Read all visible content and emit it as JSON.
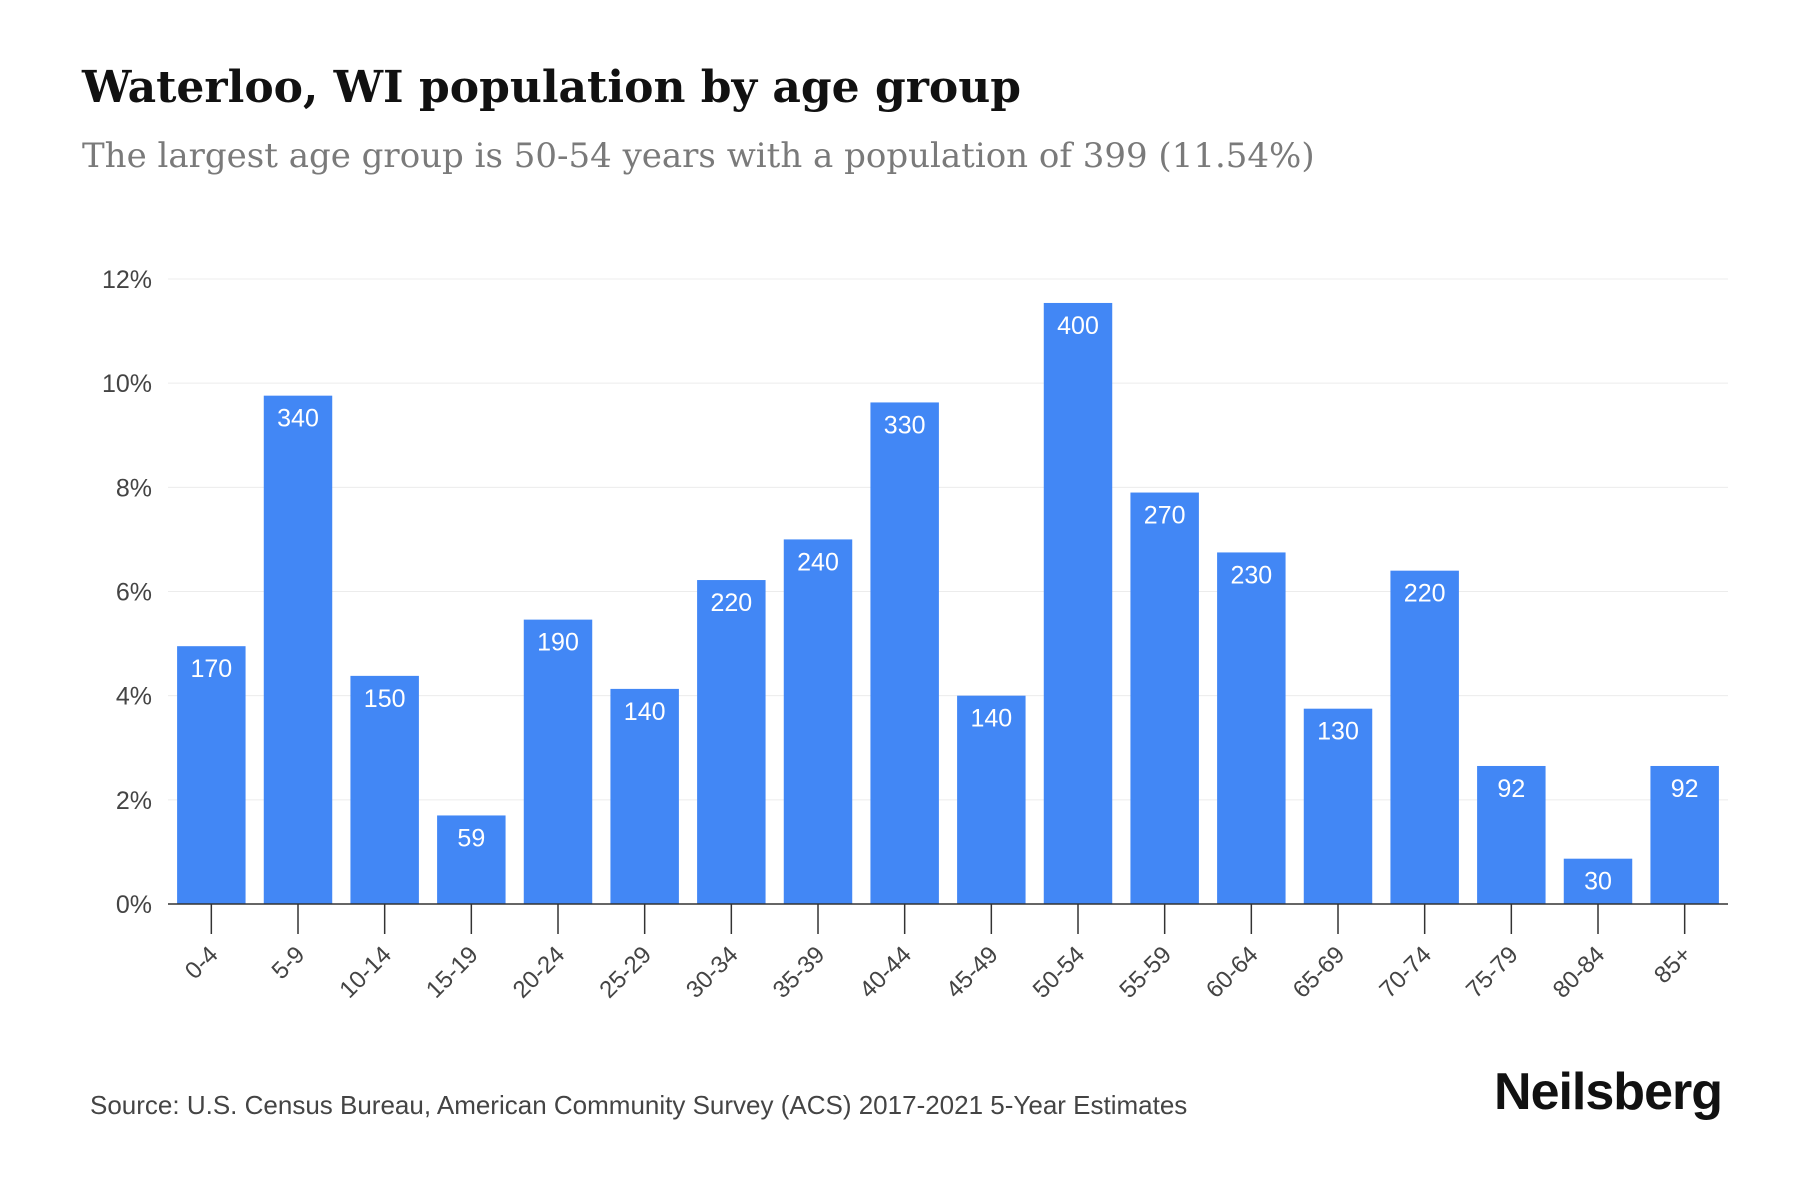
{
  "header": {
    "title": "Waterloo, WI population by age group",
    "subtitle": "The largest age group is 50-54 years with a population of 399 (11.54%)"
  },
  "footer": {
    "source": "Source: U.S. Census Bureau, American Community Survey (ACS) 2017-2021 5-Year Estimates",
    "brand": "Neilsberg"
  },
  "colors": {
    "bar": "#4287f5",
    "bar_label": "#ffffff",
    "grid": "#ececec",
    "axis": "#333333",
    "tick_text": "#444444"
  },
  "chart_data": {
    "type": "bar",
    "title": "Waterloo, WI population by age group",
    "xlabel": "",
    "ylabel": "",
    "ylim": [
      0,
      12
    ],
    "y_ticks": [
      0,
      2,
      4,
      6,
      8,
      10,
      12
    ],
    "y_tick_labels": [
      "0%",
      "2%",
      "4%",
      "6%",
      "8%",
      "10%",
      "12%"
    ],
    "grid": true,
    "legend": "none",
    "categories": [
      "0-4",
      "5-9",
      "10-14",
      "15-19",
      "20-24",
      "25-29",
      "30-34",
      "35-39",
      "40-44",
      "45-49",
      "50-54",
      "55-59",
      "60-64",
      "65-69",
      "70-74",
      "75-79",
      "80-84",
      "85+"
    ],
    "values": [
      4.95,
      9.76,
      4.38,
      1.7,
      5.46,
      4.13,
      6.22,
      7.0,
      9.63,
      4.0,
      11.54,
      7.9,
      6.75,
      3.75,
      6.4,
      2.65,
      0.87,
      2.65
    ],
    "data_labels": [
      "170",
      "340",
      "150",
      "59",
      "190",
      "140",
      "220",
      "240",
      "330",
      "140",
      "400",
      "270",
      "230",
      "130",
      "220",
      "92",
      "30",
      "92"
    ]
  }
}
